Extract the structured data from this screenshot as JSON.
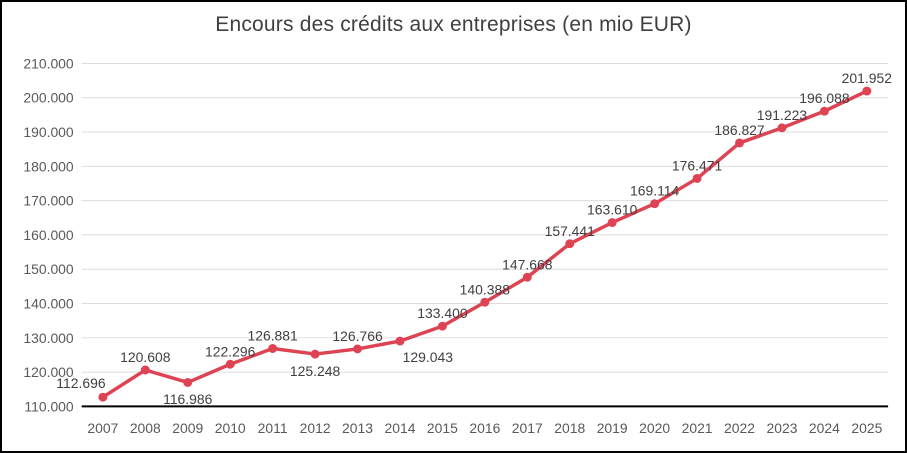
{
  "chart_data": {
    "type": "line",
    "title": "Encours des crédits aux entreprises (en mio EUR)",
    "xlabel": "",
    "ylabel": "",
    "categories": [
      "2007",
      "2008",
      "2009",
      "2010",
      "2011",
      "2012",
      "2013",
      "2014",
      "2015",
      "2016",
      "2017",
      "2018",
      "2019",
      "2020",
      "2021",
      "2022",
      "2023",
      "2024",
      "2025"
    ],
    "values": [
      112696,
      120608,
      116986,
      122296,
      126881,
      125248,
      126766,
      129043,
      133400,
      140388,
      147668,
      157441,
      163610,
      169114,
      176471,
      186827,
      191223,
      196088,
      201952
    ],
    "data_labels": [
      "112.696",
      "120.608",
      "116.986",
      "122.296",
      "126.881",
      "125.248",
      "126.766",
      "129.043",
      "133.400",
      "140.388",
      "147.668",
      "157.441",
      "163.610",
      "169.114",
      "176.471",
      "186.827",
      "191.223",
      "196.088",
      "201.952"
    ],
    "y_ticks": [
      110000,
      120000,
      130000,
      140000,
      150000,
      160000,
      170000,
      180000,
      190000,
      200000,
      210000
    ],
    "y_tick_labels": [
      "110.000",
      "120.000",
      "130.000",
      "140.000",
      "150.000",
      "160.000",
      "170.000",
      "180.000",
      "190.000",
      "200.000",
      "210.000"
    ],
    "ylim": [
      110000,
      210000
    ],
    "ytick_step": 10000,
    "grid": true,
    "legend": false,
    "number_format": "thousands-dot",
    "label_positions": {
      "2007": "above-left",
      "2009": "below",
      "2012": "below",
      "2014": "below-right"
    },
    "colors": {
      "line": "#de4353",
      "marker": "#de4353",
      "title": "#404040",
      "data_label": "#404040",
      "axis_label": "#595959",
      "gridline": "#dcdcdc",
      "axis_line": "#000000",
      "background": "#ffffff",
      "frame_border": "#000000"
    }
  }
}
